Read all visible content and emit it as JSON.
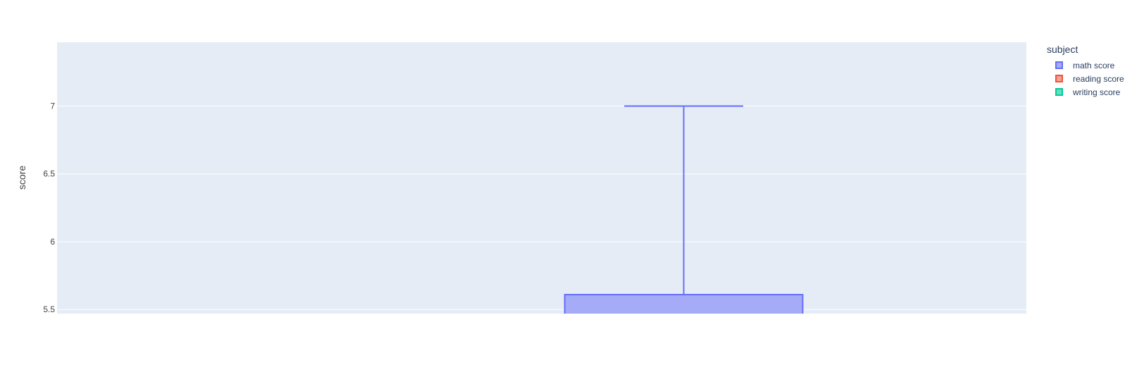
{
  "chart_data": {
    "type": "box",
    "title": "",
    "xlabel": "",
    "ylabel": "score",
    "ylim": [
      5.47,
      7.47
    ],
    "yticks": [
      5.5,
      6,
      6.5,
      7
    ],
    "ytick_labels": [
      "5.5",
      "6",
      "6.5",
      "7"
    ],
    "grid": true,
    "legend": {
      "title": "subject",
      "position": "top-right",
      "entries": [
        {
          "name": "math score",
          "color": "#636efa"
        },
        {
          "name": "reading score",
          "color": "#ef553b"
        },
        {
          "name": "writing score",
          "color": "#00cc96"
        }
      ]
    },
    "series": [
      {
        "name": "math score",
        "color": "#636efa",
        "fill": "#a6abf8",
        "q3": 5.61,
        "upper_whisker": 7.0
      }
    ]
  },
  "colors": {
    "plot_background": "#e5ecf6",
    "grid": "#ffffff"
  }
}
